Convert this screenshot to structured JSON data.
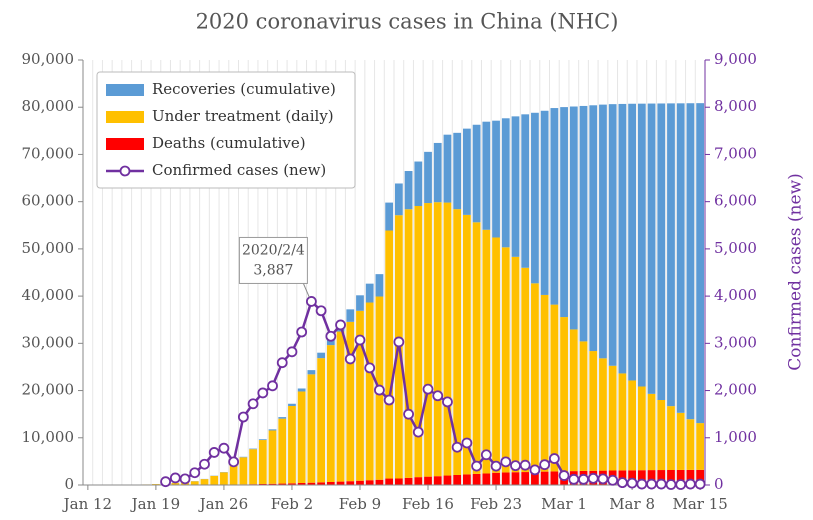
{
  "chart_data": {
    "type": "bar",
    "title": "2020 coronavirus cases in China (NHC)",
    "y2label": "Confirmed cases (new)",
    "annotation": "2020/2/4",
    "categories": [
      "Jan 12",
      null,
      null,
      null,
      null,
      null,
      null,
      "Jan 19",
      null,
      null,
      null,
      null,
      null,
      null,
      "Jan 26",
      null,
      null,
      null,
      null,
      null,
      null,
      "Feb 2",
      null,
      null,
      null,
      null,
      null,
      null,
      "Feb 9",
      null,
      null,
      null,
      null,
      null,
      null,
      "Feb 16",
      null,
      null,
      null,
      null,
      null,
      null,
      "Feb 23",
      null,
      null,
      null,
      null,
      null,
      null,
      "Mar 1",
      null,
      null,
      null,
      null,
      null,
      null,
      "Mar 8",
      null,
      null,
      null,
      null,
      null,
      null,
      "Mar 15"
    ],
    "series": [
      {
        "name": "Recoveries (cumulative)",
        "type": "bar",
        "color": "#5b9bd5",
        "values": [
          0,
          0,
          0,
          0,
          0,
          0,
          0,
          0,
          25,
          28,
          28,
          34,
          38,
          49,
          51,
          60,
          103,
          124,
          171,
          243,
          328,
          475,
          632,
          892,
          1153,
          1540,
          2050,
          2649,
          3281,
          3996,
          4740,
          5911,
          6723,
          8096,
          9419,
          10844,
          12552,
          14376,
          16155,
          18264,
          20659,
          22888,
          24734,
          27323,
          29745,
          32495,
          36117,
          39002,
          41625,
          44462,
          47204,
          49856,
          52045,
          53726,
          55404,
          57065,
          58600,
          59897,
          61475,
          62793,
          64111,
          65541,
          66911,
          67749
        ]
      },
      {
        "name": "Under treatment (daily)",
        "type": "bar",
        "color": "#ffc000",
        "values": [
          40,
          40,
          40,
          40,
          43,
          60,
          119,
          195,
          260,
          403,
          526,
          771,
          1208,
          1870,
          2613,
          4349,
          5739,
          7417,
          9308,
          11289,
          13748,
          16369,
          19381,
          22942,
          26302,
          28985,
          31774,
          33738,
          35982,
          37626,
          38800,
          52526,
          55748,
          56873,
          57416,
          57934,
          58016,
          57805,
          56303,
          54965,
          53284,
          51606,
          49824,
          47672,
          45604,
          43258,
          39919,
          37414,
          35329,
          32652,
          30004,
          27433,
          25352,
          23784,
          22177,
          20533,
          19016,
          17721,
          16145,
          14831,
          13526,
          12094,
          10734,
          9898
        ]
      },
      {
        "name": "Deaths (cumulative)",
        "type": "bar",
        "color": "#ff0000",
        "values": [
          1,
          1,
          1,
          1,
          2,
          2,
          2,
          3,
          6,
          9,
          17,
          25,
          41,
          56,
          80,
          106,
          132,
          170,
          213,
          259,
          304,
          361,
          425,
          490,
          563,
          636,
          722,
          811,
          908,
          1016,
          1113,
          1367,
          1380,
          1523,
          1665,
          1770,
          1868,
          2004,
          2118,
          2236,
          2345,
          2442,
          2592,
          2663,
          2715,
          2744,
          2788,
          2835,
          2870,
          2912,
          2943,
          2981,
          3012,
          3042,
          3070,
          3097,
          3119,
          3136,
          3158,
          3169,
          3176,
          3189,
          3199,
          3213
        ]
      },
      {
        "name": "Confirmed cases (new)",
        "type": "line",
        "axis": "y2",
        "color": "#7030a0",
        "values": [
          null,
          null,
          null,
          null,
          null,
          null,
          null,
          null,
          70,
          150,
          130,
          260,
          440,
          690,
          780,
          490,
          1440,
          1720,
          1950,
          2100,
          2590,
          2820,
          3240,
          3887,
          3690,
          3150,
          3390,
          2670,
          3070,
          2480,
          2010,
          1800,
          3030,
          1500,
          1120,
          2030,
          1890,
          1760,
          800,
          890,
          400,
          640,
          400,
          490,
          410,
          420,
          320,
          430,
          560,
          200,
          120,
          120,
          140,
          130,
          100,
          50,
          40,
          20,
          20,
          20,
          10,
          10,
          20,
          20
        ],
        "value_labels": [
          null,
          null,
          null,
          null,
          null,
          null,
          null,
          null,
          null,
          null,
          null,
          null,
          null,
          null,
          null,
          null,
          null,
          null,
          null,
          null,
          null,
          null,
          null,
          "3,887",
          null,
          null,
          null,
          null,
          null,
          null,
          null,
          null,
          null,
          null,
          null,
          null,
          null,
          null,
          null,
          null,
          null,
          null,
          null,
          null,
          null,
          null,
          null,
          null,
          null,
          null,
          null,
          null,
          null,
          null,
          null,
          null,
          null,
          null,
          null,
          null,
          null,
          null,
          null,
          null
        ]
      }
    ],
    "ylim": [
      0,
      90000
    ],
    "yticks": [
      0,
      {
        "value": 10000,
        "label": "10,000"
      },
      {
        "value": 20000,
        "label": "20,000"
      },
      {
        "value": 30000,
        "label": "30,000"
      },
      {
        "value": 40000,
        "label": "40,000"
      },
      {
        "value": 50000,
        "label": "50,000"
      },
      {
        "value": 60000,
        "label": "60,000"
      },
      {
        "value": 70000,
        "label": "70,000"
      },
      {
        "value": 80000,
        "label": "80,000"
      },
      {
        "value": 90000,
        "label": "90,000"
      }
    ],
    "y2lim": [
      0,
      9000
    ],
    "y2ticks": [
      0,
      {
        "value": 1000,
        "label": "1,000"
      },
      {
        "value": 2000,
        "label": "2,000"
      },
      {
        "value": 3000,
        "label": "3,000"
      },
      {
        "value": 4000,
        "label": "4,000"
      },
      {
        "value": 5000,
        "label": "5,000"
      },
      {
        "value": 6000,
        "label": "6,000"
      },
      {
        "value": 7000,
        "label": "7,000"
      },
      {
        "value": 8000,
        "label": "8,000"
      },
      {
        "value": 9000,
        "label": "9,000"
      }
    ],
    "legend": "top-left"
  }
}
